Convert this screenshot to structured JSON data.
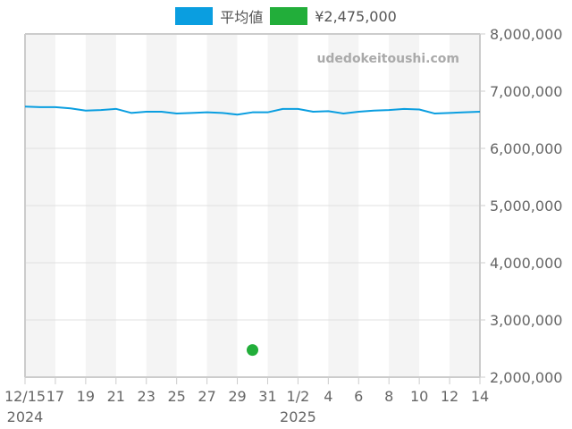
{
  "legend": [
    {
      "label": "平均値",
      "color": "#0a9ee0",
      "icon": "line-series-swatch"
    },
    {
      "label": "¥2,475,000",
      "color": "#22ae3a",
      "icon": "point-series-swatch"
    }
  ],
  "watermark": "udedokeitoushi.com",
  "colors": {
    "line": "#0a9ee0",
    "point": "#22ae3a",
    "band": "#f4f4f4",
    "grid": "#e0e0e0",
    "axis": "#cccccc"
  },
  "chart_data": {
    "type": "line",
    "title": "",
    "xlabel": "",
    "ylabel": "",
    "ylim": [
      2000000,
      8000000
    ],
    "y_ticks": [
      "2,000,000",
      "3,000,000",
      "4,000,000",
      "5,000,000",
      "6,000,000",
      "7,000,000",
      "8,000,000"
    ],
    "y_tick_values": [
      2000000,
      3000000,
      4000000,
      5000000,
      6000000,
      7000000,
      8000000
    ],
    "x_ticks": [
      {
        "day": 0,
        "label": "12/15",
        "sub": "2024"
      },
      {
        "day": 2,
        "label": "17"
      },
      {
        "day": 4,
        "label": "19"
      },
      {
        "day": 6,
        "label": "21"
      },
      {
        "day": 8,
        "label": "23"
      },
      {
        "day": 10,
        "label": "25"
      },
      {
        "day": 12,
        "label": "27"
      },
      {
        "day": 14,
        "label": "29"
      },
      {
        "day": 16,
        "label": "31"
      },
      {
        "day": 18,
        "label": "1/2",
        "sub": "2025"
      },
      {
        "day": 20,
        "label": "4"
      },
      {
        "day": 22,
        "label": "6"
      },
      {
        "day": 24,
        "label": "8"
      },
      {
        "day": 26,
        "label": "10"
      },
      {
        "day": 28,
        "label": "12"
      },
      {
        "day": 30,
        "label": "14"
      }
    ],
    "x_range_days": [
      0,
      30
    ],
    "grid": true,
    "legend_position": "top",
    "categories": [
      "12/15",
      "12/16",
      "12/17",
      "12/18",
      "12/19",
      "12/20",
      "12/21",
      "12/22",
      "12/23",
      "12/24",
      "12/25",
      "12/26",
      "12/27",
      "12/28",
      "12/29",
      "12/30",
      "12/31",
      "1/1",
      "1/2",
      "1/3",
      "1/4",
      "1/5",
      "1/6",
      "1/7",
      "1/8",
      "1/9",
      "1/10",
      "1/11",
      "1/12",
      "1/13",
      "1/14"
    ],
    "series": [
      {
        "name": "平均値",
        "type": "line",
        "values": [
          6730000,
          6720000,
          6720000,
          6700000,
          6660000,
          6670000,
          6690000,
          6620000,
          6640000,
          6640000,
          6610000,
          6620000,
          6630000,
          6620000,
          6590000,
          6630000,
          6630000,
          6690000,
          6690000,
          6640000,
          6650000,
          6610000,
          6640000,
          6660000,
          6670000,
          6690000,
          6680000,
          6610000,
          6620000,
          6630000,
          6640000
        ]
      },
      {
        "name": "¥2,475,000",
        "type": "scatter",
        "points": [
          {
            "x": "12/30",
            "day": 15,
            "y": 2475000
          }
        ]
      }
    ]
  }
}
